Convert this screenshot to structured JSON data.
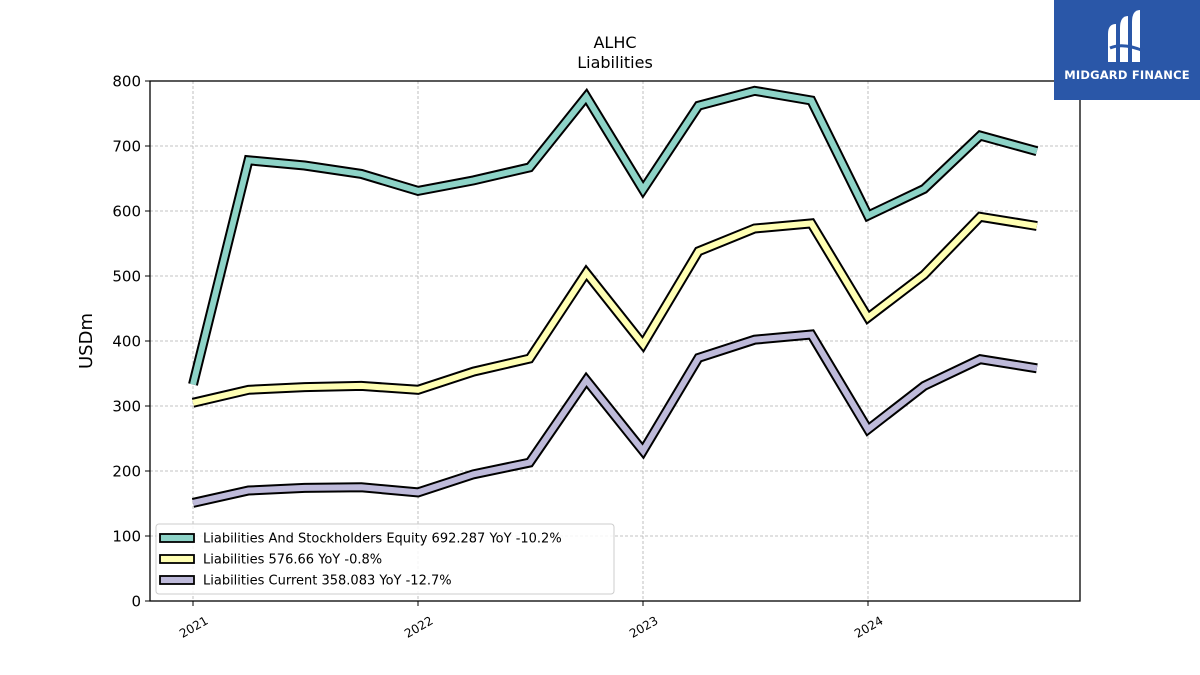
{
  "chart_data": {
    "type": "line",
    "title": "ALHC",
    "subtitle": "Liabilities",
    "ylabel": "USDm",
    "xlabel": "",
    "ylim": [
      0,
      800
    ],
    "yticks": [
      0,
      100,
      200,
      300,
      400,
      500,
      600,
      700,
      800
    ],
    "xticks": [
      "2021",
      "2022",
      "2023",
      "2024"
    ],
    "x": [
      "2021-01-01",
      "2021-04-01",
      "2021-07-01",
      "2021-10-01",
      "2022-01-01",
      "2022-04-01",
      "2022-07-01",
      "2022-10-01",
      "2023-01-01",
      "2023-04-01",
      "2023-07-01",
      "2023-10-01",
      "2024-01-01",
      "2024-04-01",
      "2024-07-01",
      "2024-10-01"
    ],
    "grid": true,
    "legend_position": "lower-left",
    "series": [
      {
        "name": "Liabilities And Stockholders Equity",
        "legend": "Liabilities And Stockholders Equity  692.287 YoY -10.2%",
        "color": "#8dd3c7",
        "values": [
          333,
          678,
          670,
          657,
          631,
          647,
          667,
          776,
          633,
          762,
          785,
          770,
          593,
          634,
          716,
          692
        ]
      },
      {
        "name": "Liabilities",
        "legend": "Liabilities  576.66 YoY -0.8%",
        "color": "#ffffb3",
        "values": [
          305,
          325,
          329,
          331,
          325,
          353,
          373,
          505,
          395,
          538,
          573,
          581,
          436,
          502,
          591,
          577
        ]
      },
      {
        "name": "Liabilities Current",
        "legend": "Liabilities Current  358.083 YoY -12.7%",
        "color": "#bebada",
        "values": [
          151,
          170,
          174,
          175,
          167,
          195,
          213,
          340,
          231,
          374,
          402,
          410,
          264,
          331,
          372,
          358
        ]
      }
    ]
  },
  "logo": {
    "text": "MIDGARD FINANCE"
  }
}
